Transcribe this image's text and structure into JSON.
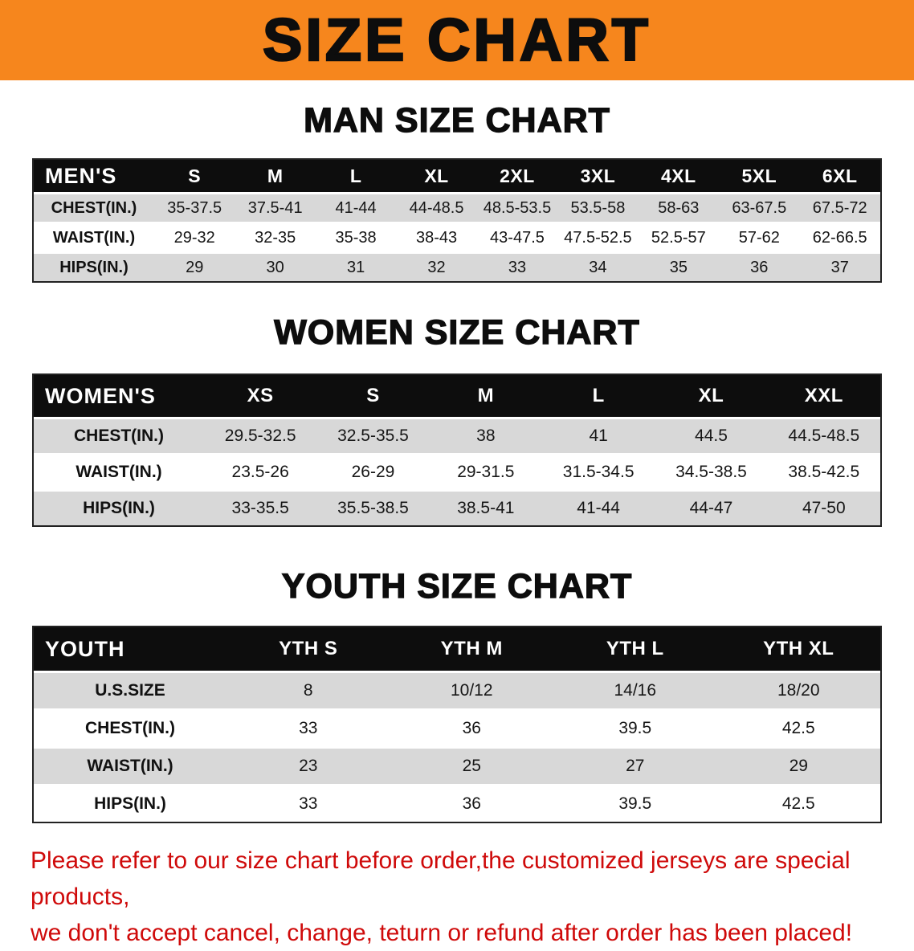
{
  "banner": {
    "title": "SIZE CHART",
    "bg_color": "#f6861d",
    "text_color": "#0d0d0d"
  },
  "colors": {
    "table_header_bg": "#0d0d0d",
    "table_header_text": "#ffffff",
    "row_stripe": "#d8d8d8",
    "footer_text": "#cf0a0a"
  },
  "men": {
    "heading": "MAN SIZE CHART",
    "table": {
      "header_label": "MEN'S",
      "columns": [
        "S",
        "M",
        "L",
        "XL",
        "2XL",
        "3XL",
        "4XL",
        "5XL",
        "6XL"
      ],
      "rows": [
        {
          "label": "CHEST(IN.)",
          "values": [
            "35-37.5",
            "37.5-41",
            "41-44",
            "44-48.5",
            "48.5-53.5",
            "53.5-58",
            "58-63",
            "63-67.5",
            "67.5-72"
          ]
        },
        {
          "label": "WAIST(IN.)",
          "values": [
            "29-32",
            "32-35",
            "35-38",
            "38-43",
            "43-47.5",
            "47.5-52.5",
            "52.5-57",
            "57-62",
            "62-66.5"
          ]
        },
        {
          "label": "HIPS(IN.)",
          "values": [
            "29",
            "30",
            "31",
            "32",
            "33",
            "34",
            "35",
            "36",
            "37"
          ]
        }
      ]
    }
  },
  "women": {
    "heading": "WOMEN SIZE CHART",
    "table": {
      "header_label": "WOMEN'S",
      "columns": [
        "XS",
        "S",
        "M",
        "L",
        "XL",
        "XXL"
      ],
      "rows": [
        {
          "label": "CHEST(IN.)",
          "values": [
            "29.5-32.5",
            "32.5-35.5",
            "38",
            "41",
            "44.5",
            "44.5-48.5"
          ]
        },
        {
          "label": "WAIST(IN.)",
          "values": [
            "23.5-26",
            "26-29",
            "29-31.5",
            "31.5-34.5",
            "34.5-38.5",
            "38.5-42.5"
          ]
        },
        {
          "label": "HIPS(IN.)",
          "values": [
            "33-35.5",
            "35.5-38.5",
            "38.5-41",
            "41-44",
            "44-47",
            "47-50"
          ]
        }
      ]
    }
  },
  "youth": {
    "heading": "YOUTH SIZE CHART",
    "table": {
      "header_label": "YOUTH",
      "columns": [
        "YTH S",
        "YTH M",
        "YTH L",
        "YTH XL"
      ],
      "rows": [
        {
          "label": "U.S.SIZE",
          "values": [
            "8",
            "10/12",
            "14/16",
            "18/20"
          ]
        },
        {
          "label": "CHEST(IN.)",
          "values": [
            "33",
            "36",
            "39.5",
            "42.5"
          ]
        },
        {
          "label": "WAIST(IN.)",
          "values": [
            "23",
            "25",
            "27",
            "29"
          ]
        },
        {
          "label": "HIPS(IN.)",
          "values": [
            "33",
            "36",
            "39.5",
            "42.5"
          ]
        }
      ]
    }
  },
  "footer": {
    "line1": "Please refer to our size chart before order,the customized jerseys are special products,",
    "line2": "we don't accept cancel, change, teturn or refund after order has been placed!"
  }
}
